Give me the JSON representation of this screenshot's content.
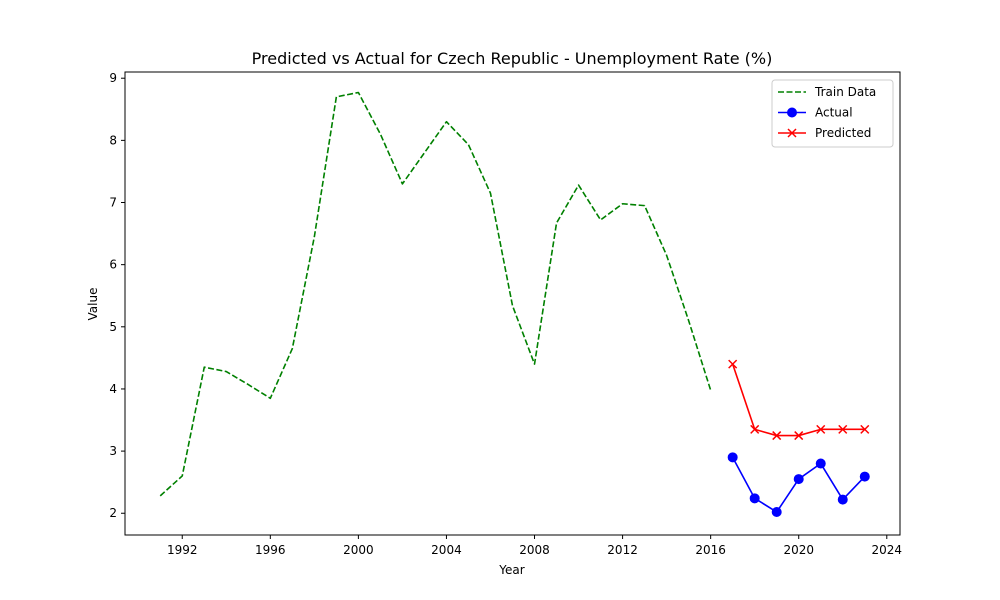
{
  "chart_data": {
    "type": "line",
    "title": "Predicted vs Actual for Czech Republic - Unemployment Rate (%)",
    "xlabel": "Year",
    "ylabel": "Value",
    "xlim": [
      1989.4,
      2024.6
    ],
    "ylim": [
      1.65,
      9.1
    ],
    "xticks": [
      1992,
      1996,
      2000,
      2004,
      2008,
      2012,
      2016,
      2020,
      2024
    ],
    "yticks": [
      2,
      3,
      4,
      5,
      6,
      7,
      8,
      9
    ],
    "grid": false,
    "legend_position": "top-right",
    "series": [
      {
        "name": "Train Data",
        "color": "#008000",
        "line_style": "dashed",
        "marker": "none",
        "x": [
          1991,
          1992,
          1993,
          1994,
          1995,
          1996,
          1997,
          1998,
          1999,
          2000,
          2001,
          2002,
          2003,
          2004,
          2005,
          2006,
          2007,
          2008,
          2009,
          2010,
          2011,
          2012,
          2013,
          2014,
          2015,
          2016
        ],
        "y": [
          2.28,
          2.6,
          4.35,
          4.28,
          4.07,
          3.85,
          4.65,
          6.45,
          8.7,
          8.77,
          8.1,
          7.3,
          7.8,
          8.3,
          7.93,
          7.15,
          5.34,
          4.4,
          6.67,
          7.28,
          6.72,
          6.98,
          6.95,
          6.15,
          5.1,
          3.98
        ]
      },
      {
        "name": "Actual",
        "color": "#0000ff",
        "line_style": "solid",
        "marker": "circle",
        "x": [
          2017,
          2018,
          2019,
          2020,
          2021,
          2022,
          2023
        ],
        "y": [
          2.9,
          2.24,
          2.02,
          2.55,
          2.8,
          2.22,
          2.59
        ]
      },
      {
        "name": "Predicted",
        "color": "#ff0000",
        "line_style": "solid",
        "marker": "x",
        "x": [
          2017,
          2018,
          2019,
          2020,
          2021,
          2022,
          2023
        ],
        "y": [
          4.4,
          3.35,
          3.25,
          3.25,
          3.35,
          3.35,
          3.35
        ]
      }
    ]
  }
}
